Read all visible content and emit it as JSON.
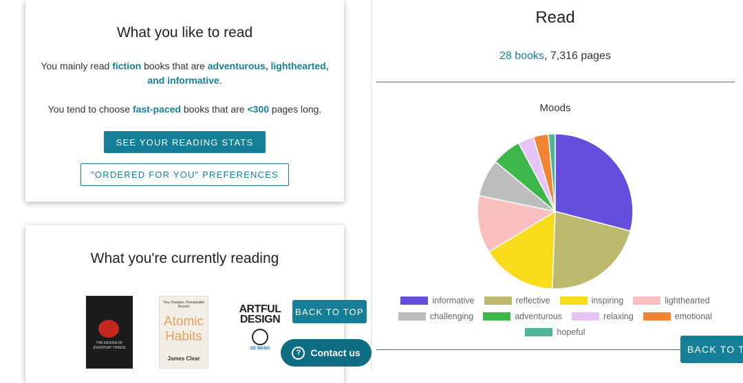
{
  "preferences": {
    "title": "What you like to read",
    "line1": [
      "You mainly read ",
      "fiction",
      " books that are ",
      "adventurous, lighthearted, and informative",
      "."
    ],
    "line2": [
      "You tend to choose ",
      "fast-paced",
      " books that are ",
      "<300",
      " pages long."
    ],
    "stats_button": "SEE YOUR READING STATS",
    "prefs_button": "\"ORDERED FOR YOU\" PREFERENCES"
  },
  "current": {
    "title": "What you're currently reading",
    "books": [
      {
        "title": "THE DESIGN OF EVERYDAY THINGS"
      },
      {
        "tagline": "Tiny Changes, Remarkable Results",
        "title1": "Atomic",
        "title2": "Habits",
        "author": "James Clear"
      },
      {
        "title1": "ARTFUL",
        "title2": "DESIGN",
        "author": "GE WANG"
      }
    ]
  },
  "back_to_top": "BACK TO TOP",
  "back_to_top_right": "BACK TO T",
  "contact": {
    "icon": "?",
    "label": "Contact us"
  },
  "read": {
    "title": "Read",
    "books": "28 books",
    "sep": ", ",
    "pages": "7,316 pages"
  },
  "chart_data": {
    "type": "pie",
    "title": "Moods",
    "categories": [
      "informative",
      "reflective",
      "inspiring",
      "lighthearted",
      "challenging",
      "adventurous",
      "relaxing",
      "emotional",
      "hopeful"
    ],
    "values": [
      29,
      21.5,
      15.6,
      12,
      7.8,
      6.1,
      3.3,
      3.1,
      1.4
    ],
    "colors": [
      "#644fdc",
      "#bcb96f",
      "#f8dc1c",
      "#f9bfbf",
      "#bdbdbd",
      "#3db74a",
      "#e6c4f6",
      "#f08433",
      "#4db39a"
    ]
  }
}
